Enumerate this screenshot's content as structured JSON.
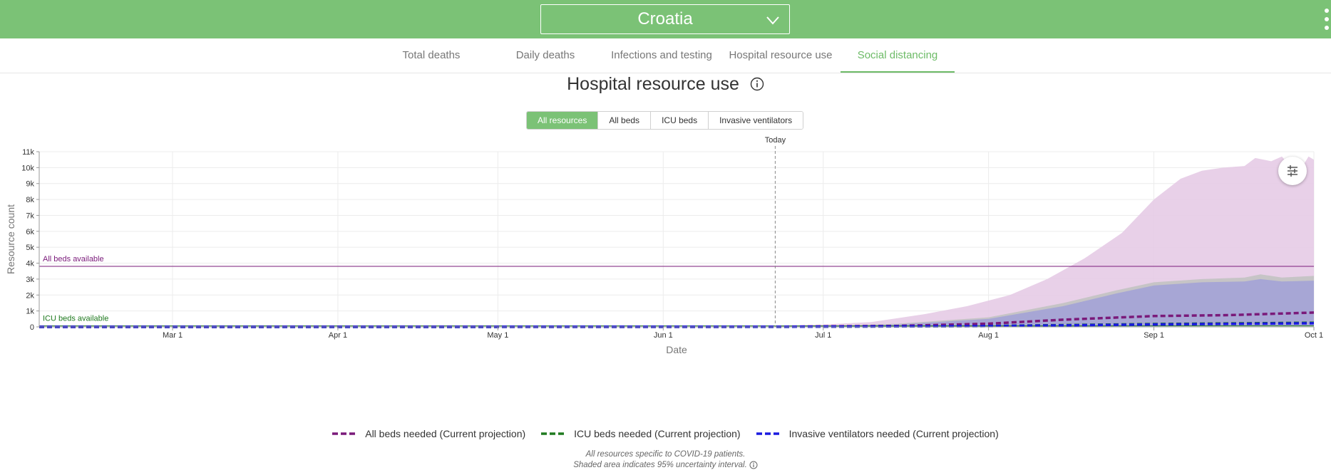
{
  "header": {
    "country": "Croatia"
  },
  "tabs": [
    {
      "label": "Total deaths"
    },
    {
      "label": "Daily deaths"
    },
    {
      "label": "Infections and testing"
    },
    {
      "label": "Hospital resource use"
    },
    {
      "label": "Social distancing"
    }
  ],
  "title": "Hospital resource use",
  "filters": [
    "All resources",
    "All beds",
    "ICU beds",
    "Invasive ventilators"
  ],
  "selected_filter": "All resources",
  "legend": [
    {
      "label": "All beds needed (Current projection)",
      "color": "#7a1a7a"
    },
    {
      "label": "ICU beds needed (Current projection)",
      "color": "#1f7a1f"
    },
    {
      "label": "Invasive ventilators needed (Current projection)",
      "color": "#1a1ae0"
    }
  ],
  "footnote": {
    "line1": "All resources specific to COVID-19 patients.",
    "line2": "Shaded area indicates 95% uncertainty interval."
  },
  "colors": {
    "brand_green": "#7bc276",
    "all_beds": "#7a1a7a",
    "icu_beds": "#1f7a1f",
    "ventilators": "#1a1ae0",
    "all_beds_band": "#e6cbe6",
    "icu_band": "#c2c2c2",
    "vent_band": "#a3a3d6"
  },
  "chart_data": {
    "type": "area",
    "xlabel": "Date",
    "ylabel": "Resource count",
    "ylim": [
      0,
      11000
    ],
    "y_ticks": [
      "0",
      "1k",
      "2k",
      "3k",
      "4k",
      "5k",
      "6k",
      "7k",
      "8k",
      "9k",
      "10k",
      "11k"
    ],
    "x_range": [
      "2020-02-05",
      "2020-10-01"
    ],
    "x_ticks": [
      {
        "date": "2020-03-01",
        "label": "Mar 1"
      },
      {
        "date": "2020-04-01",
        "label": "Apr 1"
      },
      {
        "date": "2020-05-01",
        "label": "May 1"
      },
      {
        "date": "2020-06-01",
        "label": "Jun 1"
      },
      {
        "date": "2020-07-01",
        "label": "Jul 1"
      },
      {
        "date": "2020-08-01",
        "label": "Aug 1"
      },
      {
        "date": "2020-09-01",
        "label": "Sep 1"
      },
      {
        "date": "2020-10-01",
        "label": "Oct 1"
      }
    ],
    "today": {
      "date": "2020-06-22",
      "label": "Today"
    },
    "reference_lines": [
      {
        "label": "All beds available",
        "value": 3800,
        "color": "#7a1a7a"
      },
      {
        "label": "ICU beds available",
        "value": 60,
        "color": "#1f7a1f"
      }
    ],
    "bands": [
      {
        "name": "All beds needed 95% UI",
        "color": "#e6cbe6",
        "points": [
          [
            "2020-06-22",
            0,
            60
          ],
          [
            "2020-07-01",
            0,
            150
          ],
          [
            "2020-07-10",
            20,
            300
          ],
          [
            "2020-07-20",
            40,
            800
          ],
          [
            "2020-07-28",
            60,
            1300
          ],
          [
            "2020-08-05",
            80,
            2000
          ],
          [
            "2020-08-12",
            100,
            3000
          ],
          [
            "2020-08-19",
            120,
            4300
          ],
          [
            "2020-08-26",
            130,
            5900
          ],
          [
            "2020-09-01",
            140,
            8000
          ],
          [
            "2020-09-06",
            150,
            9300
          ],
          [
            "2020-09-10",
            160,
            9800
          ],
          [
            "2020-09-14",
            170,
            10000
          ],
          [
            "2020-09-18",
            180,
            10100
          ],
          [
            "2020-09-20",
            180,
            10600
          ],
          [
            "2020-09-23",
            180,
            10400
          ],
          [
            "2020-09-25",
            180,
            10700
          ],
          [
            "2020-09-27",
            180,
            9900
          ],
          [
            "2020-09-28",
            180,
            9600
          ],
          [
            "2020-09-30",
            180,
            10700
          ],
          [
            "2020-10-01",
            180,
            10500
          ]
        ]
      },
      {
        "name": "ICU beds needed 95% UI",
        "color": "#c2c2c2",
        "points": [
          [
            "2020-06-22",
            0,
            30
          ],
          [
            "2020-07-01",
            0,
            60
          ],
          [
            "2020-07-15",
            10,
            200
          ],
          [
            "2020-08-01",
            20,
            600
          ],
          [
            "2020-08-15",
            30,
            1500
          ],
          [
            "2020-08-25",
            40,
            2300
          ],
          [
            "2020-09-01",
            50,
            2800
          ],
          [
            "2020-09-10",
            60,
            3000
          ],
          [
            "2020-09-18",
            60,
            3100
          ],
          [
            "2020-09-21",
            60,
            3300
          ],
          [
            "2020-09-25",
            60,
            3100
          ],
          [
            "2020-10-01",
            60,
            3200
          ]
        ]
      },
      {
        "name": "Invasive ventilators needed 95% UI",
        "color": "#a3a3d6",
        "points": [
          [
            "2020-06-22",
            0,
            20
          ],
          [
            "2020-07-01",
            0,
            40
          ],
          [
            "2020-07-15",
            5,
            150
          ],
          [
            "2020-08-01",
            10,
            500
          ],
          [
            "2020-08-15",
            20,
            1300
          ],
          [
            "2020-08-25",
            30,
            2100
          ],
          [
            "2020-09-01",
            40,
            2600
          ],
          [
            "2020-09-10",
            50,
            2800
          ],
          [
            "2020-09-18",
            50,
            2850
          ],
          [
            "2020-09-21",
            50,
            3000
          ],
          [
            "2020-09-25",
            50,
            2850
          ],
          [
            "2020-10-01",
            50,
            2900
          ]
        ]
      }
    ],
    "series": [
      {
        "name": "All beds needed (Current projection)",
        "color": "#7a1a7a",
        "points": [
          [
            "2020-02-05",
            0
          ],
          [
            "2020-06-22",
            10
          ],
          [
            "2020-07-15",
            60
          ],
          [
            "2020-08-01",
            200
          ],
          [
            "2020-08-15",
            450
          ],
          [
            "2020-09-01",
            680
          ],
          [
            "2020-09-15",
            740
          ],
          [
            "2020-10-01",
            900
          ]
        ]
      },
      {
        "name": "ICU beds needed (Current projection)",
        "color": "#1f7a1f",
        "points": [
          [
            "2020-02-05",
            0
          ],
          [
            "2020-06-22",
            5
          ],
          [
            "2020-08-01",
            60
          ],
          [
            "2020-09-01",
            180
          ],
          [
            "2020-10-01",
            260
          ]
        ]
      },
      {
        "name": "Invasive ventilators needed (Current projection)",
        "color": "#1a1ae0",
        "points": [
          [
            "2020-02-05",
            0
          ],
          [
            "2020-06-22",
            5
          ],
          [
            "2020-08-01",
            50
          ],
          [
            "2020-09-01",
            150
          ],
          [
            "2020-10-01",
            230
          ]
        ]
      }
    ]
  }
}
